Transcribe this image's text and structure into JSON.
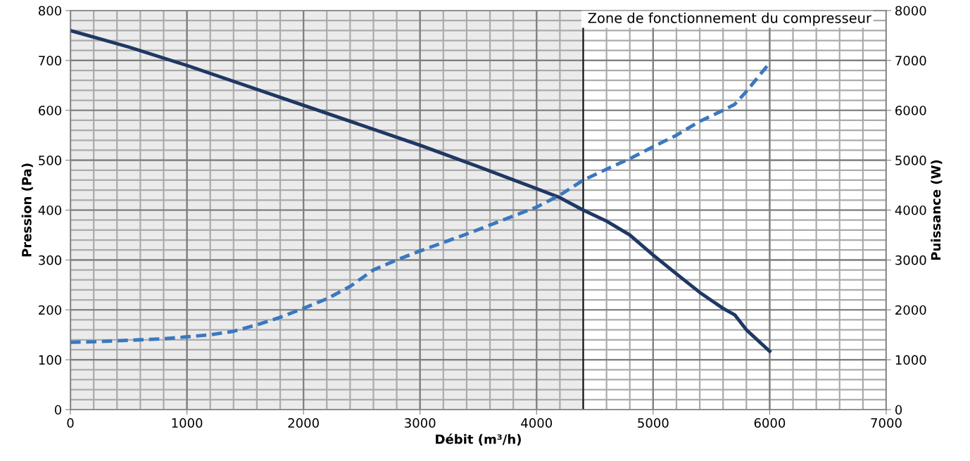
{
  "chart_data": {
    "type": "line",
    "xlabel": "Débit (m³/h)",
    "ylabel": "Pression (Pa)",
    "y2label": "Puissance (W)",
    "xlim": [
      0,
      7000
    ],
    "xticks": [
      0,
      1000,
      2000,
      3000,
      4000,
      5000,
      6000,
      7000
    ],
    "ylim": [
      0,
      800
    ],
    "yticks": [
      0,
      100,
      200,
      300,
      400,
      500,
      600,
      700,
      800
    ],
    "y2lim": [
      0,
      8000
    ],
    "y2ticks": [
      0,
      1000,
      2000,
      3000,
      4000,
      5000,
      6000,
      7000,
      8000
    ],
    "grid": true,
    "marker": "none",
    "series": [
      {
        "color": "#1f3864",
        "line_style": "solid",
        "x": [
          0,
          500,
          1000,
          1500,
          2000,
          2500,
          3000,
          3500,
          4000,
          4200,
          4400,
          4600,
          4800,
          5000,
          5200,
          5400,
          5600,
          5700,
          5800,
          6000
        ],
        "values": [
          760,
          727,
          690,
          650,
          610,
          570,
          530,
          487,
          443,
          425,
          400,
          378,
          350,
          310,
          272,
          235,
          203,
          190,
          160,
          117
        ]
      },
      {
        "color": "#3a78c0",
        "line_style": "dashed",
        "axis": "y2",
        "x": [
          0,
          200,
          400,
          600,
          800,
          1000,
          1200,
          1400,
          1600,
          1800,
          2000,
          2200,
          2400,
          2600,
          2800,
          3000,
          3200,
          3400,
          3600,
          3800,
          4000,
          4200,
          4400,
          4600,
          4800,
          5000,
          5200,
          5400,
          5600,
          5700,
          5800,
          6000
        ],
        "values": [
          1350,
          1360,
          1380,
          1400,
          1420,
          1460,
          1500,
          1570,
          1700,
          1850,
          2030,
          2220,
          2470,
          2800,
          3000,
          3180,
          3350,
          3520,
          3700,
          3880,
          4060,
          4300,
          4600,
          4820,
          5030,
          5270,
          5500,
          5780,
          6000,
          6120,
          6380,
          6950
        ]
      }
    ],
    "bands": [
      {
        "axis": "x",
        "from": 0,
        "to": 4400,
        "color": "#ebebeb"
      }
    ],
    "ref_lines": [
      {
        "axis": "x",
        "value": 4400,
        "label": "Zone de fonctionnement du compresseur",
        "color": "#1a1a1a",
        "line_style": "solid"
      }
    ]
  }
}
